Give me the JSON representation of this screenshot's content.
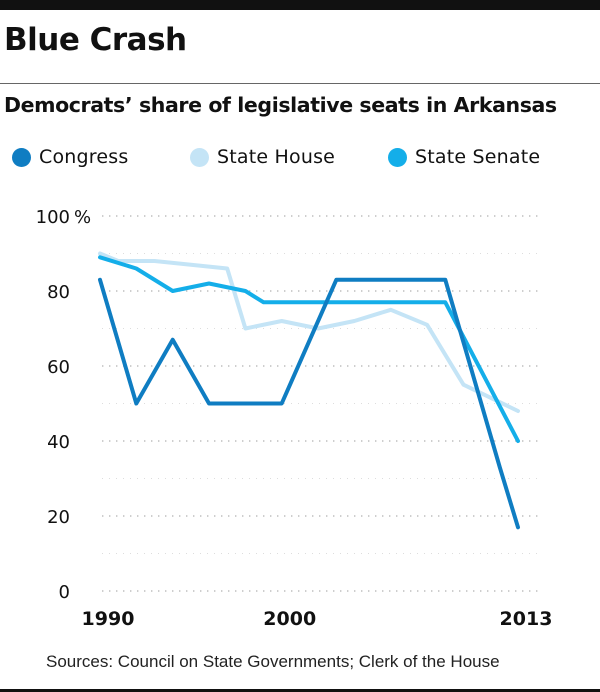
{
  "header": {
    "title": "Blue Crash",
    "subtitle": "Democrats’ share of legislative seats in Arkansas"
  },
  "footer": {
    "source": "Sources: Council on State Governments; Clerk of the House"
  },
  "colors": {
    "congress": "#0f7dc2",
    "state_house": "#c4e4f6",
    "state_senate": "#14aee9",
    "grid": "#bdbdbd",
    "text": "#111111"
  },
  "chart_data": {
    "type": "line",
    "title": "Democrats’ share of legislative seats in Arkansas",
    "xlabel": "",
    "ylabel": "",
    "xlim": [
      1990,
      2013
    ],
    "ylim": [
      0,
      100
    ],
    "x_ticks": [
      1990,
      2000,
      2013
    ],
    "x_tick_labels": [
      "1990",
      "2000",
      "2013"
    ],
    "y_ticks": [
      0,
      20,
      40,
      60,
      80,
      100
    ],
    "y_tick_labels": [
      "0",
      "20",
      "40",
      "60",
      "80",
      "100"
    ],
    "y_unit": "%",
    "grid": "horizontal dotted",
    "legend_position": "top",
    "series": [
      {
        "name": "State House",
        "color": "#c4e4f6",
        "points": [
          [
            1990,
            90
          ],
          [
            1991,
            88
          ],
          [
            1993,
            88
          ],
          [
            1995,
            87
          ],
          [
            1997,
            86
          ],
          [
            1998,
            70
          ],
          [
            2000,
            72
          ],
          [
            2002,
            70
          ],
          [
            2004,
            72
          ],
          [
            2006,
            75
          ],
          [
            2008,
            71
          ],
          [
            2010,
            55
          ],
          [
            2013,
            48
          ]
        ]
      },
      {
        "name": "State Senate",
        "color": "#14aee9",
        "points": [
          [
            1990,
            89
          ],
          [
            1992,
            86
          ],
          [
            1994,
            80
          ],
          [
            1996,
            82
          ],
          [
            1998,
            80
          ],
          [
            1999,
            77
          ],
          [
            2000,
            77
          ],
          [
            2002,
            77
          ],
          [
            2004,
            77
          ],
          [
            2006,
            77
          ],
          [
            2009,
            77
          ],
          [
            2013,
            40
          ]
        ]
      },
      {
        "name": "Congress",
        "color": "#0f7dc2",
        "points": [
          [
            1990,
            83
          ],
          [
            1992,
            50
          ],
          [
            1994,
            67
          ],
          [
            1996,
            50
          ],
          [
            1998,
            50
          ],
          [
            2000,
            50
          ],
          [
            2003,
            83
          ],
          [
            2007,
            83
          ],
          [
            2009,
            83
          ],
          [
            2012,
            33
          ],
          [
            2013,
            17
          ]
        ]
      }
    ]
  }
}
